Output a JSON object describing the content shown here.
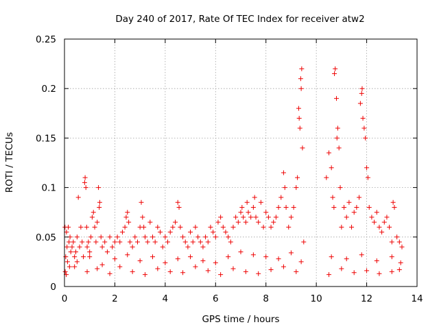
{
  "chart_data": {
    "type": "scatter",
    "title": "Day 240 of 2017, Rate Of TEC Index for receiver atw2",
    "xlabel": "GPS time / hours",
    "ylabel": "ROTI / TECUs",
    "xlim": [
      0,
      14
    ],
    "ylim": [
      0,
      0.25
    ],
    "xticks": [
      0,
      2,
      4,
      6,
      8,
      10,
      12,
      14
    ],
    "xtick_labels": [
      "0",
      "2",
      "4",
      "6",
      "8",
      "10",
      "12",
      "14"
    ],
    "yticks": [
      0,
      0.05,
      0.1,
      0.15,
      0.2,
      0.25
    ],
    "ytick_labels": [
      "0",
      "0.05",
      "0.1",
      "0.15",
      "0.2",
      "0.25"
    ],
    "grid": true,
    "marker": "plus",
    "colors": {
      "series": "#ee0000",
      "grid": "#a0a0a0",
      "axes": "#000000"
    },
    "series": [
      {
        "name": "ROTI",
        "x": [
          0.02,
          0.05,
          0.08,
          0.1,
          0.12,
          0.15,
          0.18,
          0.2,
          0.22,
          0.25,
          0.3,
          0.35,
          0.4,
          0.45,
          0.5,
          0.55,
          0.6,
          0.65,
          0.7,
          0.75,
          0.8,
          0.82,
          0.85,
          0.88,
          0.9,
          0.95,
          1.0,
          1.05,
          1.1,
          1.15,
          1.2,
          1.25,
          1.3,
          1.35,
          1.38,
          1.4,
          1.45,
          1.5,
          1.6,
          1.7,
          1.8,
          1.9,
          2.0,
          2.1,
          2.2,
          2.3,
          2.4,
          2.45,
          2.5,
          2.55,
          2.6,
          2.7,
          2.8,
          2.9,
          3.0,
          3.05,
          3.1,
          3.15,
          3.2,
          3.3,
          3.4,
          3.5,
          3.6,
          3.7,
          3.8,
          3.9,
          4.0,
          4.1,
          4.2,
          4.3,
          4.4,
          4.5,
          4.55,
          4.6,
          4.7,
          4.8,
          4.9,
          5.0,
          5.1,
          5.2,
          5.3,
          5.4,
          5.5,
          5.6,
          5.7,
          5.8,
          5.9,
          6.0,
          6.1,
          6.2,
          6.3,
          6.4,
          6.5,
          6.6,
          6.7,
          6.8,
          6.9,
          7.0,
          7.05,
          7.1,
          7.2,
          7.25,
          7.3,
          7.4,
          7.5,
          7.55,
          7.6,
          7.7,
          7.8,
          7.9,
          8.0,
          8.1,
          8.2,
          8.3,
          8.4,
          8.5,
          8.6,
          8.7,
          8.75,
          8.8,
          8.9,
          9.0,
          9.1,
          9.2,
          9.25,
          9.3,
          9.32,
          9.35,
          9.38,
          9.4,
          9.42,
          9.45,
          9.5,
          10.4,
          10.5,
          10.6,
          10.65,
          10.7,
          10.72,
          10.75,
          10.8,
          10.82,
          10.85,
          10.9,
          10.95,
          11.0,
          11.1,
          11.2,
          11.3,
          11.4,
          11.5,
          11.6,
          11.7,
          11.75,
          11.8,
          11.82,
          11.85,
          11.9,
          11.95,
          12.0,
          12.05,
          12.1,
          12.2,
          12.3,
          12.4,
          12.5,
          12.6,
          12.7,
          12.8,
          12.9,
          13.0,
          13.05,
          13.1,
          13.2,
          13.3,
          13.4,
          0.03,
          0.07,
          0.4,
          0.9,
          1.3,
          1.8,
          2.2,
          2.7,
          3.2,
          3.7,
          4.2,
          4.7,
          5.2,
          5.7,
          6.2,
          6.7,
          7.2,
          7.7,
          8.2,
          8.7,
          9.2,
          10.5,
          11.0,
          11.5,
          12.0,
          12.5,
          13.0,
          13.3,
          0.5,
          1.0,
          1.5,
          2.0,
          2.5,
          3.0,
          3.5,
          4.0,
          4.5,
          5.0,
          5.5,
          6.0,
          6.5,
          7.0,
          7.5,
          8.0,
          8.5,
          9.0,
          9.4,
          10.6,
          11.2,
          11.8,
          12.4,
          13.0,
          13.35
        ],
        "y": [
          0.06,
          0.03,
          0.055,
          0.04,
          0.025,
          0.06,
          0.045,
          0.02,
          0.05,
          0.035,
          0.04,
          0.045,
          0.03,
          0.035,
          0.05,
          0.09,
          0.04,
          0.06,
          0.045,
          0.03,
          0.105,
          0.11,
          0.1,
          0.06,
          0.04,
          0.045,
          0.035,
          0.05,
          0.07,
          0.075,
          0.06,
          0.045,
          0.065,
          0.1,
          0.08,
          0.085,
          0.05,
          0.04,
          0.045,
          0.035,
          0.05,
          0.04,
          0.045,
          0.05,
          0.045,
          0.055,
          0.06,
          0.07,
          0.075,
          0.065,
          0.045,
          0.04,
          0.05,
          0.045,
          0.06,
          0.085,
          0.07,
          0.06,
          0.05,
          0.045,
          0.065,
          0.05,
          0.045,
          0.06,
          0.055,
          0.04,
          0.05,
          0.045,
          0.055,
          0.06,
          0.065,
          0.085,
          0.08,
          0.06,
          0.05,
          0.045,
          0.04,
          0.055,
          0.045,
          0.06,
          0.05,
          0.045,
          0.04,
          0.05,
          0.045,
          0.06,
          0.055,
          0.05,
          0.065,
          0.07,
          0.06,
          0.055,
          0.05,
          0.045,
          0.06,
          0.07,
          0.065,
          0.075,
          0.08,
          0.07,
          0.065,
          0.085,
          0.075,
          0.07,
          0.08,
          0.09,
          0.07,
          0.065,
          0.085,
          0.06,
          0.075,
          0.07,
          0.06,
          0.065,
          0.07,
          0.08,
          0.09,
          0.115,
          0.1,
          0.08,
          0.06,
          0.07,
          0.08,
          0.1,
          0.11,
          0.18,
          0.17,
          0.16,
          0.21,
          0.2,
          0.22,
          0.14,
          0.045,
          0.11,
          0.135,
          0.12,
          0.09,
          0.08,
          0.215,
          0.22,
          0.19,
          0.15,
          0.16,
          0.14,
          0.1,
          0.06,
          0.08,
          0.07,
          0.085,
          0.06,
          0.075,
          0.08,
          0.09,
          0.185,
          0.195,
          0.2,
          0.17,
          0.16,
          0.15,
          0.12,
          0.11,
          0.08,
          0.07,
          0.065,
          0.075,
          0.06,
          0.055,
          0.065,
          0.07,
          0.06,
          0.045,
          0.085,
          0.08,
          0.05,
          0.045,
          0.04,
          0.015,
          0.012,
          0.02,
          0.015,
          0.018,
          0.013,
          0.02,
          0.015,
          0.012,
          0.018,
          0.015,
          0.014,
          0.02,
          0.016,
          0.012,
          0.018,
          0.015,
          0.013,
          0.017,
          0.02,
          0.015,
          0.012,
          0.018,
          0.014,
          0.016,
          0.013,
          0.015,
          0.017,
          0.025,
          0.03,
          0.022,
          0.028,
          0.032,
          0.026,
          0.03,
          0.024,
          0.028,
          0.03,
          0.026,
          0.024,
          0.03,
          0.035,
          0.032,
          0.03,
          0.028,
          0.034,
          0.025,
          0.03,
          0.028,
          0.032,
          0.026,
          0.03,
          0.024
        ]
      }
    ]
  }
}
